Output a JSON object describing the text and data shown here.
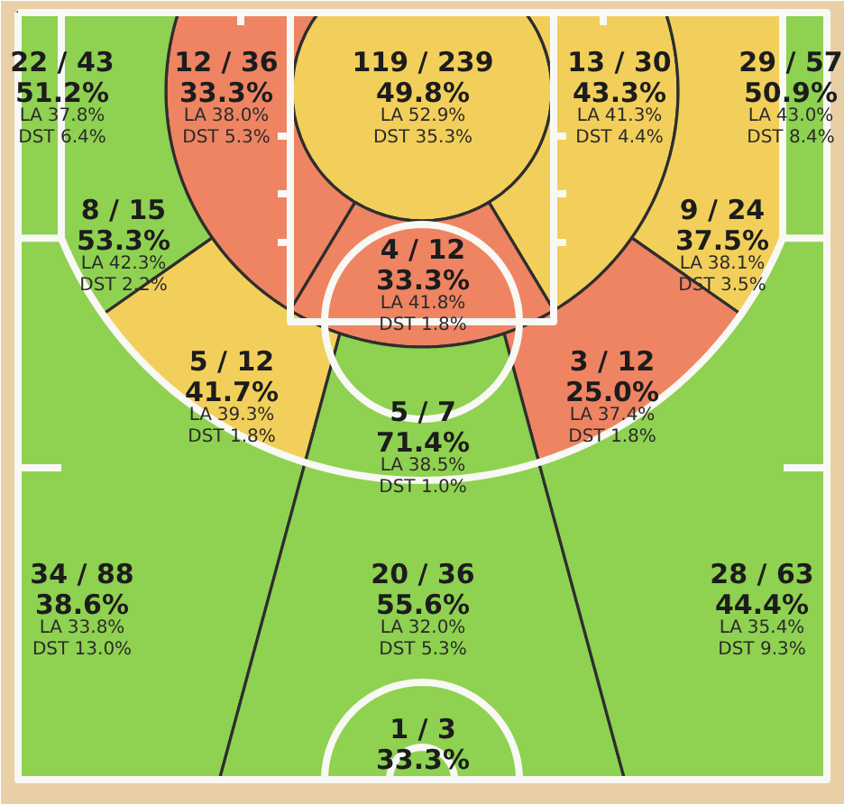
{
  "chart_data": {
    "type": "other",
    "categories": [
      "22 / 43",
      "12 / 36",
      "119 / 239",
      "13 / 30",
      "29 / 57",
      "8 / 15",
      "9 / 24",
      "4 / 12",
      "5 / 12",
      "3 / 12",
      "5 / 7",
      "34 / 88",
      "20 / 36",
      "28 / 63",
      "1 / 3"
    ],
    "series": [
      {
        "colors": [
          "#8fd150",
          "#ee8462",
          "#f2cf5a",
          "#f2cf5a",
          "#8fd150",
          "#8fd150",
          "#f2cf5a",
          "#ee8462",
          "#f2cf5a",
          "#ee8462",
          "#8fd150",
          "#8fd150",
          "#8fd150",
          "#8fd150",
          null
        ],
        "values": [
          51.2,
          33.3,
          49.8,
          43.3,
          50.9,
          53.3,
          37.5,
          33.3,
          41.7,
          25.0,
          71.4,
          38.6,
          55.6,
          44.4,
          33.3
        ],
        "value_labels": [
          "51.2%",
          "33.3%",
          "49.8%",
          "43.3%",
          "50.9%",
          "53.3%",
          "37.5%",
          "33.3%",
          "41.7%",
          "25.0%",
          "71.4%",
          "38.6%",
          "55.6%",
          "44.4%",
          "33.3%"
        ]
      },
      {
        "name": "LA",
        "values": [
          37.8,
          38.0,
          52.9,
          41.3,
          43.0,
          42.3,
          38.1,
          41.8,
          39.3,
          37.4,
          38.5,
          33.8,
          32.0,
          35.4,
          null
        ],
        "value_labels": [
          "37.8%",
          "38.0%",
          "52.9%",
          "41.3%",
          "43.0%",
          "42.3%",
          "38.1%",
          "41.8%",
          "39.3%",
          "37.4%",
          "38.5%",
          "33.8%",
          "32.0%",
          "35.4%",
          null
        ]
      },
      {
        "name": "DST",
        "values": [
          6.4,
          5.3,
          35.3,
          4.4,
          8.4,
          2.2,
          3.5,
          1.8,
          1.8,
          1.8,
          1.0,
          13.0,
          5.3,
          9.3,
          null
        ],
        "value_labels": [
          "6.4%",
          "5.3%",
          "35.3%",
          "4.4%",
          "8.4%",
          "2.2%",
          "3.5%",
          "1.8%",
          "1.8%",
          "1.8%",
          "1.0%",
          "13.0%",
          "5.3%",
          "9.3%",
          null
        ]
      }
    ]
  }
}
